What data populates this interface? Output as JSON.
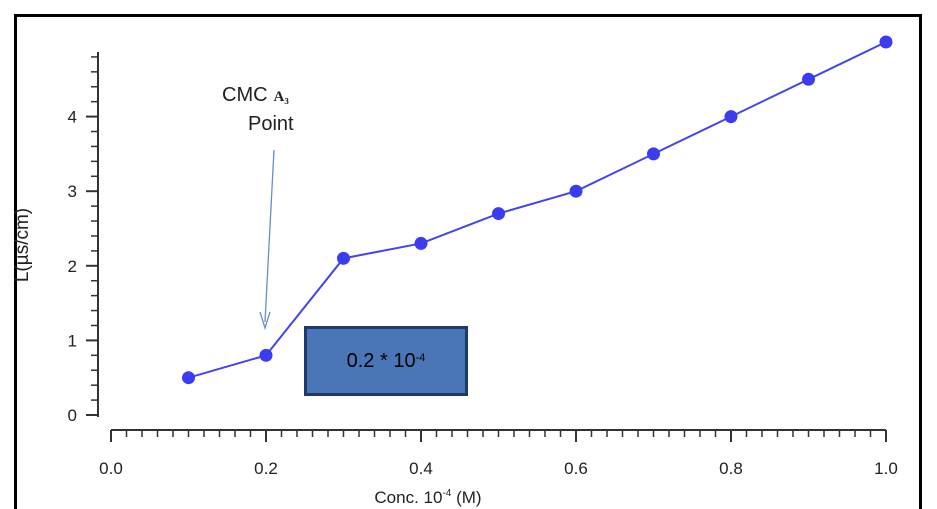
{
  "chart_data": {
    "type": "line",
    "x": [
      0.1,
      0.2,
      0.3,
      0.4,
      0.5,
      0.6,
      0.7,
      0.8,
      0.9,
      1.0
    ],
    "series": [
      {
        "values": [
          0.5,
          0.8,
          2.1,
          2.3,
          2.7,
          3.0,
          3.5,
          4.0,
          4.5,
          5.0
        ]
      }
    ],
    "xlabel": "Conc. 10",
    "xlabel_sup": "-4",
    "xlabel_unit": " (M)",
    "ylabel": "L(µs/cm)",
    "xlim": [
      0.0,
      1.0
    ],
    "ylim": [
      0,
      5
    ],
    "x_ticks": [
      "0.0",
      "0.2",
      "0.4",
      "0.6",
      "0.8",
      "1.0"
    ],
    "y_ticks": [
      "0",
      "1",
      "2",
      "3",
      "4"
    ],
    "grid": false,
    "line_color": "#4444ee",
    "marker_color": "#3b3bf0",
    "annotations": {
      "cmc_line1": "CMC",
      "cmc_subscript": "A₃",
      "cmc_line2": "Point",
      "box_base": "0.2 * 10",
      "box_sup": "-4"
    }
  }
}
